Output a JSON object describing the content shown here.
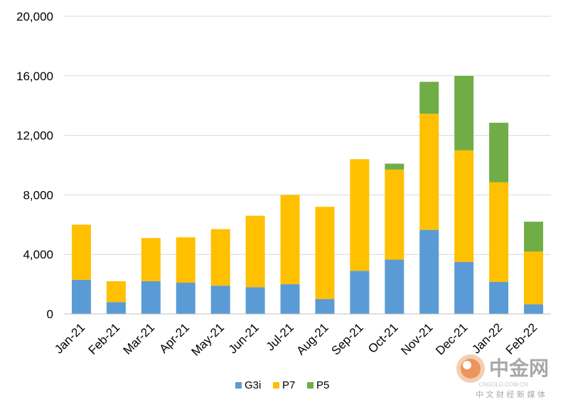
{
  "chart_data": {
    "type": "bar",
    "stacked": true,
    "categories": [
      "Jan-21",
      "Feb-21",
      "Mar-21",
      "Apr-21",
      "May-21",
      "Jun-21",
      "Jul-21",
      "Aug-21",
      "Sep-21",
      "Oct-21",
      "Nov-21",
      "Dec-21",
      "Jan-22",
      "Feb-22"
    ],
    "series": [
      {
        "name": "G3i",
        "color": "#5b9bd5",
        "values": [
          2300,
          800,
          2200,
          2100,
          1900,
          1800,
          2000,
          1000,
          2900,
          3650,
          5650,
          3500,
          2150,
          650
        ]
      },
      {
        "name": "P7",
        "color": "#ffc000",
        "values": [
          3700,
          1400,
          2900,
          3050,
          3800,
          4800,
          6000,
          6200,
          7500,
          6050,
          7800,
          7500,
          6700,
          3550
        ]
      },
      {
        "name": "P5",
        "color": "#70ad47",
        "values": [
          0,
          0,
          0,
          0,
          0,
          0,
          0,
          0,
          0,
          400,
          2150,
          5000,
          4000,
          2000
        ]
      }
    ],
    "y_ticks": [
      "0",
      "4,000",
      "8,000",
      "12,000",
      "16,000",
      "20,000"
    ],
    "ylim": [
      0,
      20000
    ],
    "grid": true,
    "legend": "bottom-center"
  },
  "watermark": {
    "brand": "中金网",
    "url": "CNGOLD.COM.CN",
    "tagline": "中 文 财 经 新 媒 体"
  }
}
